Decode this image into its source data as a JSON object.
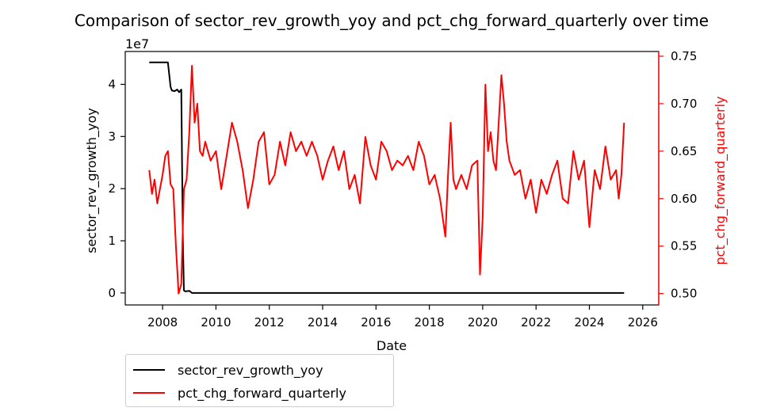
{
  "chart_data": {
    "type": "line",
    "title": "Comparison of sector_rev_growth_yoy and pct_chg_forward_quarterly over time",
    "xlabel": "Date",
    "x_ticks": [
      "2008",
      "2010",
      "2012",
      "2014",
      "2016",
      "2018",
      "2020",
      "2022",
      "2024",
      "2026"
    ],
    "x_range": [
      2006.6,
      2026.6
    ],
    "left_axis": {
      "label": "sector_rev_growth_yoy",
      "multiplier_label": "1e7",
      "ticks": [
        "0",
        "1",
        "2",
        "3",
        "4"
      ],
      "range": [
        -0.23,
        4.63
      ],
      "unit_multiplier": 10000000,
      "color": "#000000"
    },
    "right_axis": {
      "label": "pct_chg_forward_quarterly",
      "ticks": [
        "0.50",
        "0.55",
        "0.60",
        "0.65",
        "0.70",
        "0.75"
      ],
      "range": [
        0.488,
        0.755
      ],
      "color": "#ff0000"
    },
    "grid": false,
    "legend_placement": "below-left",
    "series": [
      {
        "name": "sector_rev_growth_yoy",
        "axis": "left",
        "color": "#000000",
        "x": [
          2007.5,
          2008.2,
          2008.3,
          2008.35,
          2008.45,
          2008.55,
          2008.62,
          2008.7,
          2008.76,
          2008.8,
          2008.85,
          2009.0,
          2009.1,
          2025.3
        ],
        "y": [
          4.42,
          4.42,
          3.95,
          3.88,
          3.87,
          3.9,
          3.85,
          3.9,
          1.0,
          0.05,
          0.03,
          0.04,
          0.0,
          0.0
        ]
      },
      {
        "name": "pct_chg_forward_quarterly",
        "axis": "right",
        "color": "#ff0000",
        "x": [
          2007.5,
          2007.6,
          2007.7,
          2007.8,
          2007.9,
          2008.0,
          2008.1,
          2008.2,
          2008.3,
          2008.4,
          2008.5,
          2008.6,
          2008.7,
          2008.8,
          2008.9,
          2009.0,
          2009.1,
          2009.2,
          2009.3,
          2009.4,
          2009.5,
          2009.6,
          2009.8,
          2010.0,
          2010.2,
          2010.4,
          2010.6,
          2010.8,
          2011.0,
          2011.2,
          2011.4,
          2011.6,
          2011.8,
          2012.0,
          2012.2,
          2012.4,
          2012.6,
          2012.8,
          2013.0,
          2013.2,
          2013.4,
          2013.6,
          2013.8,
          2014.0,
          2014.2,
          2014.4,
          2014.6,
          2014.8,
          2015.0,
          2015.2,
          2015.4,
          2015.6,
          2015.8,
          2016.0,
          2016.2,
          2016.4,
          2016.6,
          2016.8,
          2017.0,
          2017.2,
          2017.4,
          2017.6,
          2017.8,
          2018.0,
          2018.2,
          2018.4,
          2018.6,
          2018.7,
          2018.8,
          2018.9,
          2019.0,
          2019.2,
          2019.4,
          2019.6,
          2019.8,
          2019.9,
          2020.0,
          2020.1,
          2020.2,
          2020.3,
          2020.4,
          2020.5,
          2020.6,
          2020.7,
          2020.8,
          2020.9,
          2021.0,
          2021.2,
          2021.4,
          2021.6,
          2021.8,
          2022.0,
          2022.2,
          2022.4,
          2022.6,
          2022.8,
          2023.0,
          2023.2,
          2023.4,
          2023.6,
          2023.8,
          2024.0,
          2024.2,
          2024.4,
          2024.6,
          2024.8,
          2025.0,
          2025.1,
          2025.2,
          2025.3
        ],
        "y": [
          0.63,
          0.605,
          0.62,
          0.595,
          0.61,
          0.625,
          0.645,
          0.65,
          0.615,
          0.61,
          0.55,
          0.5,
          0.51,
          0.61,
          0.62,
          0.67,
          0.74,
          0.68,
          0.7,
          0.65,
          0.645,
          0.66,
          0.64,
          0.65,
          0.61,
          0.645,
          0.68,
          0.66,
          0.63,
          0.59,
          0.62,
          0.66,
          0.67,
          0.615,
          0.625,
          0.66,
          0.635,
          0.67,
          0.65,
          0.66,
          0.645,
          0.66,
          0.645,
          0.62,
          0.64,
          0.655,
          0.63,
          0.65,
          0.61,
          0.625,
          0.595,
          0.665,
          0.635,
          0.62,
          0.66,
          0.65,
          0.63,
          0.64,
          0.635,
          0.645,
          0.63,
          0.66,
          0.645,
          0.615,
          0.625,
          0.6,
          0.56,
          0.625,
          0.68,
          0.62,
          0.61,
          0.625,
          0.61,
          0.635,
          0.64,
          0.52,
          0.58,
          0.72,
          0.65,
          0.67,
          0.64,
          0.63,
          0.68,
          0.73,
          0.7,
          0.66,
          0.64,
          0.625,
          0.63,
          0.6,
          0.62,
          0.585,
          0.62,
          0.605,
          0.625,
          0.64,
          0.6,
          0.595,
          0.65,
          0.62,
          0.64,
          0.57,
          0.63,
          0.61,
          0.655,
          0.62,
          0.63,
          0.6,
          0.625,
          0.68
        ]
      }
    ]
  }
}
